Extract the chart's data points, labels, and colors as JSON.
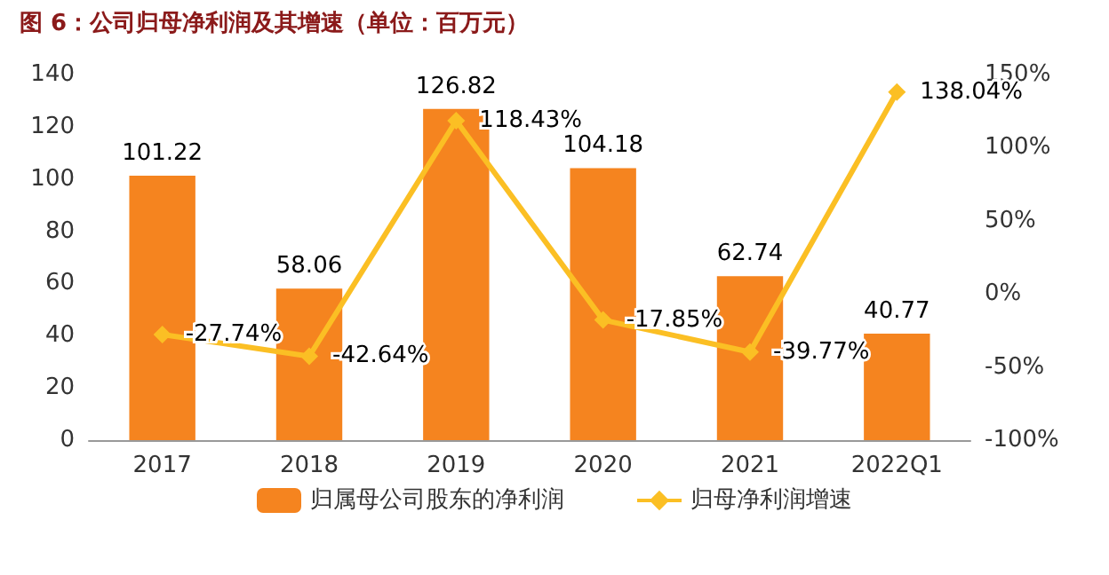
{
  "chart_data": {
    "type": "bar",
    "title": "图 6：公司归母净利润及其增速（单位：百万元）",
    "categories": [
      "2017",
      "2018",
      "2019",
      "2020",
      "2021",
      "2022Q1"
    ],
    "series": [
      {
        "name": "归属母公司股东的净利润",
        "color": "#f5841f",
        "values": [
          101.22,
          58.06,
          126.82,
          104.18,
          62.74,
          40.77
        ],
        "value_labels": [
          "101.22",
          "58.06",
          "126.82",
          "104.18",
          "62.74",
          "40.77"
        ]
      },
      {
        "name": "归母净利润增速",
        "type": "line",
        "axis": "y2",
        "color": "#fbbf24",
        "marker": "diamond",
        "values": [
          -27.74,
          -42.64,
          118.43,
          -17.85,
          -39.77,
          138.04
        ],
        "value_labels": [
          "-27.74%",
          "-42.64%",
          "118.43%",
          "-17.85%",
          "-39.77%",
          "138.04%"
        ]
      }
    ],
    "ylim": [
      0,
      140
    ],
    "yticks": [
      0,
      20,
      40,
      60,
      80,
      100,
      120,
      140
    ],
    "y2lim": [
      -100,
      150
    ],
    "y2ticks": [
      {
        "value": -100,
        "label": "-100%"
      },
      {
        "value": -50,
        "label": "-50%"
      },
      {
        "value": 0,
        "label": "0%"
      },
      {
        "value": 50,
        "label": "50%"
      },
      {
        "value": 100,
        "label": "100%"
      },
      {
        "value": 150,
        "label": "150%"
      }
    ],
    "grid": false,
    "legend": "bottom"
  }
}
